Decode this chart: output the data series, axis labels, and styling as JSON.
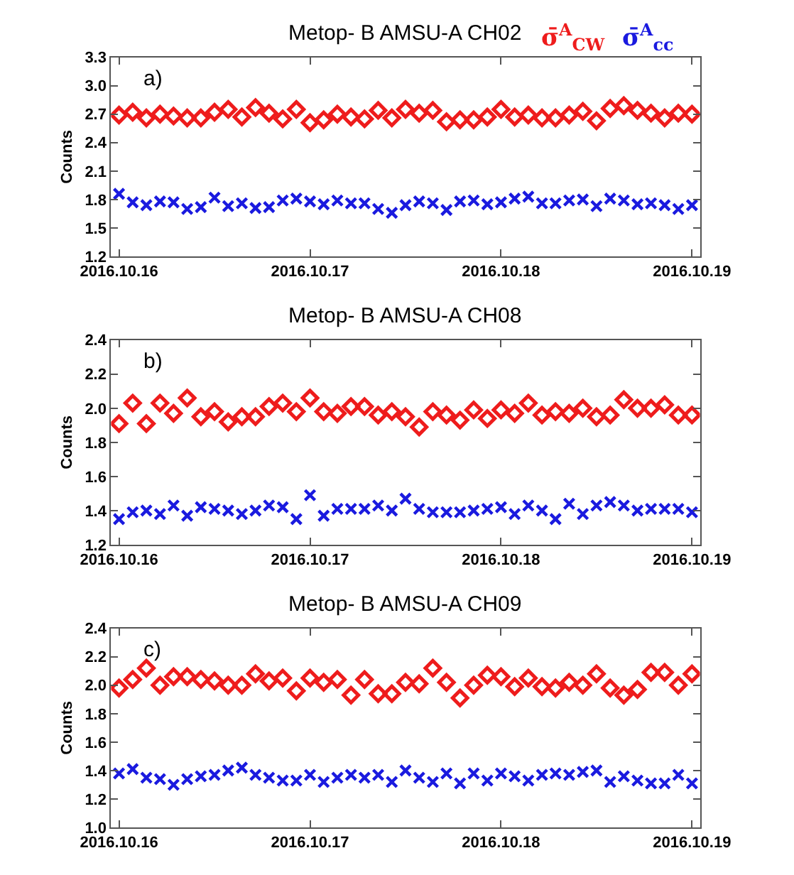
{
  "chart_data": [
    {
      "type": "scatter",
      "title": "Metop- B AMSU-A CH02",
      "ylabel": "Counts",
      "annotations": [
        "a)"
      ],
      "x": [
        "2016-10-16T00:00",
        "2016-10-16T01:43",
        "2016-10-16T03:26",
        "2016-10-16T05:09",
        "2016-10-16T06:51",
        "2016-10-16T08:34",
        "2016-10-16T10:17",
        "2016-10-16T12:00",
        "2016-10-16T13:43",
        "2016-10-16T15:26",
        "2016-10-16T17:09",
        "2016-10-16T18:51",
        "2016-10-16T20:34",
        "2016-10-16T22:17",
        "2016-10-17T00:00",
        "2016-10-17T01:43",
        "2016-10-17T03:26",
        "2016-10-17T05:09",
        "2016-10-17T06:51",
        "2016-10-17T08:34",
        "2016-10-17T10:17",
        "2016-10-17T12:00",
        "2016-10-17T13:43",
        "2016-10-17T15:26",
        "2016-10-17T17:09",
        "2016-10-17T18:51",
        "2016-10-17T20:34",
        "2016-10-17T22:17",
        "2016-10-18T00:00",
        "2016-10-18T01:43",
        "2016-10-18T03:26",
        "2016-10-18T05:09",
        "2016-10-18T06:51",
        "2016-10-18T08:34",
        "2016-10-18T10:17",
        "2016-10-18T12:00",
        "2016-10-18T13:43",
        "2016-10-18T15:26",
        "2016-10-18T17:09",
        "2016-10-18T18:51",
        "2016-10-18T20:34",
        "2016-10-18T22:17",
        "2016-10-19T00:00"
      ],
      "xlim": [
        "2016-10-15T23:00",
        "2016-10-19T01:00"
      ],
      "xticks": [
        {
          "value": "2016-10-16",
          "label": "2016.10.16"
        },
        {
          "value": "2016-10-17",
          "label": "2016.10.17"
        },
        {
          "value": "2016-10-18",
          "label": "2016.10.18"
        },
        {
          "value": "2016-10-19",
          "label": "2016.10.19"
        }
      ],
      "ylim": [
        1.2,
        3.3
      ],
      "yticks": [
        {
          "value": 1.2,
          "label": "1.2"
        },
        {
          "value": 1.5,
          "label": "1.5"
        },
        {
          "value": 1.8,
          "label": "1.8"
        },
        {
          "value": 2.1,
          "label": "2.1"
        },
        {
          "value": 2.4,
          "label": "2.4"
        },
        {
          "value": 2.7,
          "label": "2.7"
        },
        {
          "value": 3.0,
          "label": "3.0"
        },
        {
          "value": 3.3,
          "label": "3.3"
        }
      ],
      "series": [
        {
          "name": "σ̄$^{A}$$_{CW}$",
          "color": "#ee1c1c",
          "marker": "diamond",
          "values": [
            2.69,
            2.72,
            2.66,
            2.7,
            2.68,
            2.66,
            2.66,
            2.72,
            2.75,
            2.67,
            2.77,
            2.71,
            2.65,
            2.75,
            2.61,
            2.64,
            2.7,
            2.67,
            2.65,
            2.74,
            2.66,
            2.75,
            2.71,
            2.74,
            2.62,
            2.64,
            2.64,
            2.67,
            2.75,
            2.67,
            2.69,
            2.66,
            2.66,
            2.69,
            2.73,
            2.63,
            2.76,
            2.79,
            2.74,
            2.71,
            2.66,
            2.71,
            2.7
          ]
        },
        {
          "name": "σ̄$^{A}$$_{cc}$",
          "color": "#1a1adf",
          "marker": "cross",
          "values": [
            1.86,
            1.77,
            1.74,
            1.78,
            1.77,
            1.7,
            1.72,
            1.82,
            1.73,
            1.76,
            1.71,
            1.72,
            1.79,
            1.81,
            1.78,
            1.75,
            1.79,
            1.76,
            1.76,
            1.7,
            1.66,
            1.74,
            1.78,
            1.76,
            1.69,
            1.78,
            1.79,
            1.75,
            1.77,
            1.81,
            1.83,
            1.76,
            1.76,
            1.79,
            1.8,
            1.73,
            1.81,
            1.79,
            1.75,
            1.76,
            1.74,
            1.7,
            1.74
          ]
        }
      ]
    },
    {
      "type": "scatter",
      "title": "Metop- B AMSU-A CH08",
      "ylabel": "Counts",
      "annotations": [
        "b)"
      ],
      "x": [
        "2016-10-16T00:00",
        "2016-10-16T01:43",
        "2016-10-16T03:26",
        "2016-10-16T05:09",
        "2016-10-16T06:51",
        "2016-10-16T08:34",
        "2016-10-16T10:17",
        "2016-10-16T12:00",
        "2016-10-16T13:43",
        "2016-10-16T15:26",
        "2016-10-16T17:09",
        "2016-10-16T18:51",
        "2016-10-16T20:34",
        "2016-10-16T22:17",
        "2016-10-17T00:00",
        "2016-10-17T01:43",
        "2016-10-17T03:26",
        "2016-10-17T05:09",
        "2016-10-17T06:51",
        "2016-10-17T08:34",
        "2016-10-17T10:17",
        "2016-10-17T12:00",
        "2016-10-17T13:43",
        "2016-10-17T15:26",
        "2016-10-17T17:09",
        "2016-10-17T18:51",
        "2016-10-17T20:34",
        "2016-10-17T22:17",
        "2016-10-18T00:00",
        "2016-10-18T01:43",
        "2016-10-18T03:26",
        "2016-10-18T05:09",
        "2016-10-18T06:51",
        "2016-10-18T08:34",
        "2016-10-18T10:17",
        "2016-10-18T12:00",
        "2016-10-18T13:43",
        "2016-10-18T15:26",
        "2016-10-18T17:09",
        "2016-10-18T18:51",
        "2016-10-18T20:34",
        "2016-10-18T22:17",
        "2016-10-19T00:00"
      ],
      "xlim": [
        "2016-10-15T23:00",
        "2016-10-19T01:00"
      ],
      "xticks": [
        {
          "value": "2016-10-16",
          "label": "2016.10.16"
        },
        {
          "value": "2016-10-17",
          "label": "2016.10.17"
        },
        {
          "value": "2016-10-18",
          "label": "2016.10.18"
        },
        {
          "value": "2016-10-19",
          "label": "2016.10.19"
        }
      ],
      "ylim": [
        1.2,
        2.4
      ],
      "yticks": [
        {
          "value": 1.2,
          "label": "1.2"
        },
        {
          "value": 1.4,
          "label": "1.4"
        },
        {
          "value": 1.6,
          "label": "1.6"
        },
        {
          "value": 1.8,
          "label": "1.8"
        },
        {
          "value": 2.0,
          "label": "2.0"
        },
        {
          "value": 2.2,
          "label": "2.2"
        },
        {
          "value": 2.4,
          "label": "2.4"
        }
      ],
      "series": [
        {
          "color": "#ee1c1c",
          "marker": "diamond",
          "values": [
            1.91,
            2.03,
            1.91,
            2.03,
            1.97,
            2.06,
            1.95,
            1.98,
            1.92,
            1.95,
            1.95,
            2.01,
            2.03,
            1.98,
            2.06,
            1.98,
            1.97,
            2.01,
            2.01,
            1.96,
            1.98,
            1.95,
            1.89,
            1.98,
            1.96,
            1.93,
            1.99,
            1.94,
            1.99,
            1.97,
            2.03,
            1.96,
            1.98,
            1.97,
            2.0,
            1.95,
            1.96,
            2.05,
            2.0,
            2.0,
            2.02,
            1.96,
            1.96
          ]
        },
        {
          "color": "#1a1adf",
          "marker": "cross",
          "values": [
            1.35,
            1.39,
            1.4,
            1.38,
            1.43,
            1.37,
            1.42,
            1.41,
            1.4,
            1.38,
            1.4,
            1.43,
            1.42,
            1.35,
            1.49,
            1.37,
            1.41,
            1.41,
            1.41,
            1.43,
            1.4,
            1.47,
            1.41,
            1.39,
            1.39,
            1.39,
            1.4,
            1.41,
            1.42,
            1.38,
            1.43,
            1.4,
            1.35,
            1.44,
            1.38,
            1.43,
            1.45,
            1.43,
            1.4,
            1.41,
            1.41,
            1.41,
            1.39
          ]
        }
      ]
    },
    {
      "type": "scatter",
      "title": "Metop- B AMSU-A CH09",
      "ylabel": "Counts",
      "annotations": [
        "c)"
      ],
      "x": [
        "2016-10-16T00:00",
        "2016-10-16T01:43",
        "2016-10-16T03:26",
        "2016-10-16T05:09",
        "2016-10-16T06:51",
        "2016-10-16T08:34",
        "2016-10-16T10:17",
        "2016-10-16T12:00",
        "2016-10-16T13:43",
        "2016-10-16T15:26",
        "2016-10-16T17:09",
        "2016-10-16T18:51",
        "2016-10-16T20:34",
        "2016-10-16T22:17",
        "2016-10-17T00:00",
        "2016-10-17T01:43",
        "2016-10-17T03:26",
        "2016-10-17T05:09",
        "2016-10-17T06:51",
        "2016-10-17T08:34",
        "2016-10-17T10:17",
        "2016-10-17T12:00",
        "2016-10-17T13:43",
        "2016-10-17T15:26",
        "2016-10-17T17:09",
        "2016-10-17T18:51",
        "2016-10-17T20:34",
        "2016-10-17T22:17",
        "2016-10-18T00:00",
        "2016-10-18T01:43",
        "2016-10-18T03:26",
        "2016-10-18T05:09",
        "2016-10-18T06:51",
        "2016-10-18T08:34",
        "2016-10-18T10:17",
        "2016-10-18T12:00",
        "2016-10-18T13:43",
        "2016-10-18T15:26",
        "2016-10-18T17:09",
        "2016-10-18T18:51",
        "2016-10-18T20:34",
        "2016-10-18T22:17",
        "2016-10-19T00:00"
      ],
      "xlim": [
        "2016-10-15T23:00",
        "2016-10-19T01:00"
      ],
      "xticks": [
        {
          "value": "2016-10-16",
          "label": "2016.10.16"
        },
        {
          "value": "2016-10-17",
          "label": "2016.10.17"
        },
        {
          "value": "2016-10-18",
          "label": "2016.10.18"
        },
        {
          "value": "2016-10-19",
          "label": "2016.10.19"
        }
      ],
      "ylim": [
        1.0,
        2.4
      ],
      "yticks": [
        {
          "value": 1.0,
          "label": "1.0"
        },
        {
          "value": 1.2,
          "label": "1.2"
        },
        {
          "value": 1.4,
          "label": "1.4"
        },
        {
          "value": 1.6,
          "label": "1.6"
        },
        {
          "value": 1.8,
          "label": "1.8"
        },
        {
          "value": 2.0,
          "label": "2.0"
        },
        {
          "value": 2.2,
          "label": "2.2"
        },
        {
          "value": 2.4,
          "label": "2.4"
        }
      ],
      "series": [
        {
          "color": "#ee1c1c",
          "marker": "diamond",
          "values": [
            1.98,
            2.04,
            2.12,
            2.0,
            2.06,
            2.06,
            2.04,
            2.03,
            2.0,
            2.0,
            2.08,
            2.03,
            2.05,
            1.96,
            2.05,
            2.02,
            2.04,
            1.93,
            2.04,
            1.94,
            1.94,
            2.02,
            2.01,
            2.12,
            2.02,
            1.91,
            2.0,
            2.07,
            2.06,
            1.99,
            2.05,
            1.99,
            1.98,
            2.02,
            2.0,
            2.08,
            1.98,
            1.93,
            1.97,
            2.09,
            2.09,
            2.0,
            2.08
          ]
        },
        {
          "color": "#1a1adf",
          "marker": "cross",
          "values": [
            1.38,
            1.41,
            1.35,
            1.34,
            1.3,
            1.34,
            1.36,
            1.37,
            1.4,
            1.42,
            1.37,
            1.35,
            1.33,
            1.33,
            1.37,
            1.32,
            1.35,
            1.37,
            1.35,
            1.37,
            1.32,
            1.4,
            1.35,
            1.32,
            1.38,
            1.31,
            1.38,
            1.33,
            1.38,
            1.36,
            1.33,
            1.37,
            1.38,
            1.37,
            1.39,
            1.4,
            1.32,
            1.36,
            1.33,
            1.31,
            1.31,
            1.37,
            1.31
          ]
        }
      ]
    }
  ]
}
